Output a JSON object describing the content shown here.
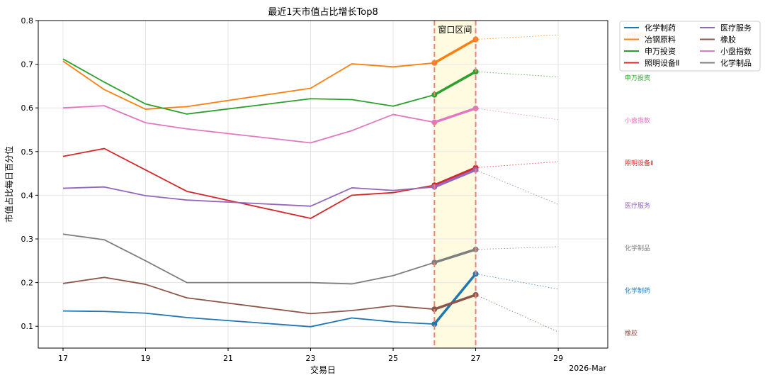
{
  "chart_data": {
    "type": "line",
    "title": "最近1天市值占比增长Top8",
    "xlabel": "交易日",
    "ylabel": "市值占比每日百分位",
    "x_ticks": [
      "17",
      "19",
      "21",
      "23",
      "25",
      "27",
      "29"
    ],
    "x_tick_values": [
      17,
      19,
      21,
      23,
      25,
      27,
      29
    ],
    "x_offset_label": "2026-Mar",
    "xlim": [
      16.4,
      30.2
    ],
    "ylim": [
      0.05,
      0.8
    ],
    "y_ticks": [
      "0.1",
      "0.2",
      "0.3",
      "0.4",
      "0.5",
      "0.6",
      "0.7",
      "0.8"
    ],
    "y_tick_values": [
      0.1,
      0.2,
      0.3,
      0.4,
      0.5,
      0.6,
      0.7,
      0.8
    ],
    "grid": true,
    "window": {
      "label": "窗口区间",
      "start": 26,
      "end": 27,
      "fill": "#fffbe0",
      "line_color": "#f08070"
    },
    "forecast_x": 29,
    "legend_position": "outside-top-right",
    "series": [
      {
        "name": "化学制药",
        "color": "#1f77b4",
        "x": [
          17,
          18,
          19,
          20,
          23,
          24,
          25,
          26,
          27
        ],
        "values": [
          0.135,
          0.134,
          0.13,
          0.12,
          0.099,
          0.119,
          0.11,
          0.105,
          0.22
        ],
        "forecast": 0.185,
        "side_label": "化学制药"
      },
      {
        "name": "冶钢原料",
        "color": "#ff7f0e",
        "x": [
          17,
          18,
          19,
          20,
          23,
          24,
          25,
          26,
          27
        ],
        "values": [
          0.707,
          0.642,
          0.597,
          0.603,
          0.645,
          0.701,
          0.694,
          0.703,
          0.757
        ],
        "forecast": 0.767,
        "side_label": "冶钢原料"
      },
      {
        "name": "申万投资",
        "color": "#2ca02c",
        "x": [
          17,
          18,
          19,
          20,
          23,
          24,
          25,
          26,
          27
        ],
        "values": [
          0.712,
          0.659,
          0.609,
          0.586,
          0.621,
          0.619,
          0.604,
          0.63,
          0.683
        ],
        "forecast": 0.671,
        "side_label": "申万投资"
      },
      {
        "name": "照明设备Ⅱ",
        "color": "#d62728",
        "x": [
          17,
          18,
          19,
          20,
          23,
          24,
          25,
          26,
          27
        ],
        "values": [
          0.489,
          0.507,
          0.458,
          0.409,
          0.347,
          0.4,
          0.406,
          0.423,
          0.463
        ],
        "forecast": 0.477,
        "side_label": "照明设备Ⅱ"
      },
      {
        "name": "医疗服务",
        "color": "#9467bd",
        "x": [
          17,
          18,
          19,
          20,
          23,
          24,
          25,
          26,
          27
        ],
        "values": [
          0.416,
          0.419,
          0.399,
          0.389,
          0.375,
          0.417,
          0.411,
          0.419,
          0.458
        ],
        "forecast": 0.379,
        "side_label": "医疗服务"
      },
      {
        "name": "橡胶",
        "color": "#8c564b",
        "x": [
          17,
          18,
          19,
          20,
          23,
          24,
          25,
          26,
          27
        ],
        "values": [
          0.198,
          0.212,
          0.196,
          0.165,
          0.129,
          0.136,
          0.147,
          0.139,
          0.172
        ],
        "forecast": 0.087,
        "side_label": "橡胶"
      },
      {
        "name": "小盘指数",
        "color": "#e377c2",
        "x": [
          17,
          18,
          19,
          20,
          23,
          24,
          25,
          26,
          27
        ],
        "values": [
          0.6,
          0.605,
          0.566,
          0.552,
          0.52,
          0.548,
          0.585,
          0.567,
          0.599
        ],
        "forecast": 0.573,
        "side_label": "小盘指数"
      },
      {
        "name": "化学制品",
        "color": "#7f7f7f",
        "x": [
          17,
          18,
          19,
          20,
          23,
          24,
          25,
          26,
          27
        ],
        "values": [
          0.311,
          0.298,
          0.25,
          0.2,
          0.2,
          0.197,
          0.216,
          0.246,
          0.276
        ],
        "forecast": 0.282,
        "side_label": "化学制品"
      }
    ],
    "side_label_order": [
      "冶钢原料",
      "申万投资",
      "小盘指数",
      "照明设备Ⅱ",
      "医疗服务",
      "化学制品",
      "化学制药",
      "橡胶"
    ]
  }
}
